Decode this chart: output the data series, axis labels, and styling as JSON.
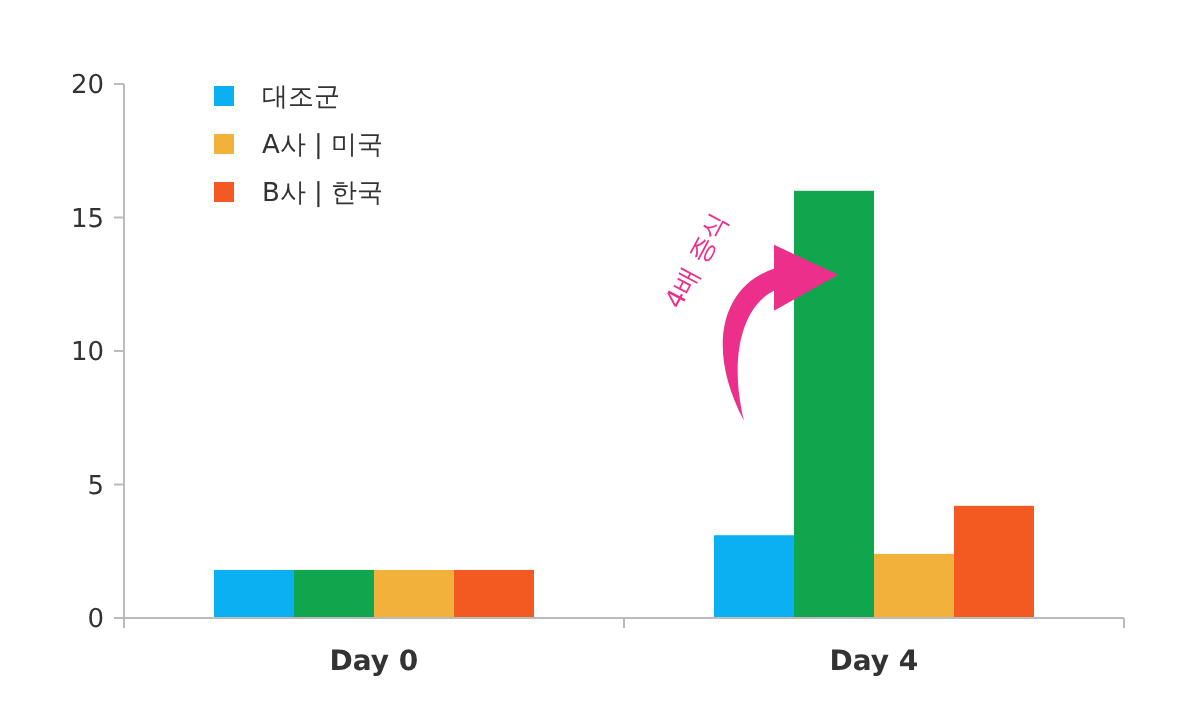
{
  "chart_data": {
    "type": "bar",
    "categories": [
      "Day 0",
      "Day 4"
    ],
    "series": [
      {
        "name": "대조군",
        "color": "#0ab0f2",
        "values": [
          1.8,
          3.1
        ]
      },
      {
        "color": "#0fa64e",
        "values": [
          1.8,
          16
        ]
      },
      {
        "name": "A사 | 미국",
        "color": "#f2b13b",
        "values": [
          1.8,
          2.4
        ]
      },
      {
        "name": "B사 | 한국",
        "color": "#f25a22",
        "values": [
          1.8,
          4.2
        ]
      }
    ],
    "ylim": [
      0,
      20
    ],
    "yticks": [
      0,
      5,
      10,
      15,
      20
    ],
    "grid": false,
    "legend": "top left",
    "annotations": [
      "4배 증식"
    ]
  }
}
